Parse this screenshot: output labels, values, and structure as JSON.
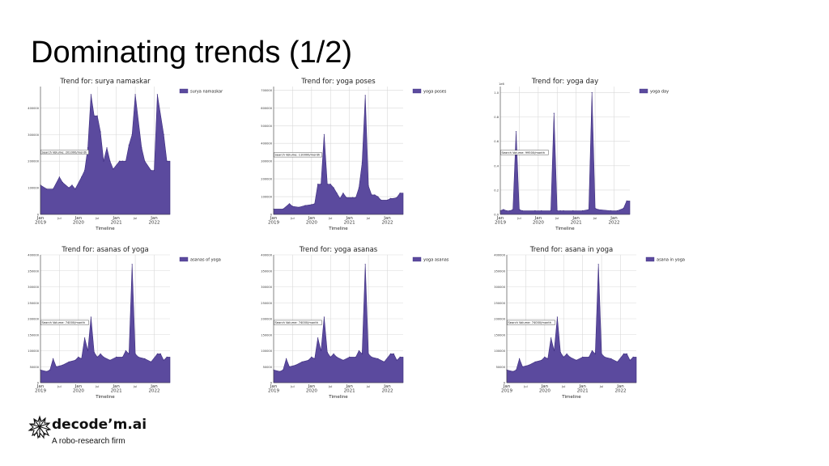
{
  "slide": {
    "title": "Dominating trends (1/2)"
  },
  "logo": {
    "name": "decode’m.ai",
    "tagline": "A robo-research firm"
  },
  "colors": {
    "fill": "#5b4a9e",
    "stroke": "#3f2f80",
    "grid": "#d9d9d9"
  },
  "chart_data": [
    {
      "type": "area",
      "title": "Trend for: surya namaskar",
      "legend": "surya namaskar",
      "xlabel": "Timeline",
      "x_ticks": [
        "Jan\n2019",
        "Jul",
        "Jan\n2020",
        "Jul",
        "Jan\n2021",
        "Jul",
        "Jan\n2022",
        "Jul"
      ],
      "ylim": [
        0,
        480000
      ],
      "y_ticks": [
        0,
        100000,
        200000,
        300000,
        400000
      ],
      "y_scale_label": "",
      "annotation": "Search Volume: 201000/month",
      "annotation_y": 230000,
      "x": [
        "2019-01",
        "2019-03",
        "2019-05",
        "2019-07",
        "2019-08",
        "2019-10",
        "2019-11",
        "2019-12",
        "2020-02",
        "2020-03",
        "2020-04",
        "2020-05",
        "2020-06",
        "2020-07",
        "2020-08",
        "2020-09",
        "2020-10",
        "2020-11",
        "2020-12",
        "2021-02",
        "2021-03",
        "2021-04",
        "2021-05",
        "2021-06",
        "2021-07",
        "2021-09",
        "2021-10",
        "2021-12",
        "2022-01",
        "2022-02",
        "2022-04",
        "2022-05"
      ],
      "values": [
        110000,
        95000,
        95000,
        140000,
        120000,
        100000,
        110000,
        95000,
        140000,
        165000,
        250000,
        450000,
        370000,
        370000,
        310000,
        200000,
        250000,
        200000,
        170000,
        200000,
        200000,
        200000,
        260000,
        300000,
        450000,
        250000,
        200000,
        165000,
        165000,
        450000,
        300000,
        200000
      ]
    },
    {
      "type": "area",
      "title": "Trend for: yoga poses",
      "legend": "yoga poses",
      "xlabel": "Timeline",
      "x_ticks": [
        "Jan\n2019",
        "Jul",
        "Jan\n2020",
        "Jul",
        "Jan\n2021",
        "Jul",
        "Jan\n2022",
        "Jul"
      ],
      "ylim": [
        0,
        720000
      ],
      "y_ticks": [
        0,
        100000,
        200000,
        300000,
        400000,
        500000,
        600000,
        700000
      ],
      "y_scale_label": "",
      "annotation": "Search Volume: 110000/month",
      "annotation_y": 330000,
      "x": [
        "2019-01",
        "2019-04",
        "2019-06",
        "2019-07",
        "2019-09",
        "2019-11",
        "2020-01",
        "2020-02",
        "2020-03",
        "2020-04",
        "2020-05",
        "2020-06",
        "2020-07",
        "2020-08",
        "2020-09",
        "2020-10",
        "2020-11",
        "2020-12",
        "2021-02",
        "2021-03",
        "2021-04",
        "2021-05",
        "2021-06",
        "2021-07",
        "2021-08",
        "2021-09",
        "2021-10",
        "2021-11",
        "2022-01",
        "2022-02",
        "2022-03",
        "2022-04",
        "2022-05"
      ],
      "values": [
        30000,
        30000,
        60000,
        45000,
        40000,
        50000,
        55000,
        60000,
        170000,
        170000,
        450000,
        170000,
        170000,
        150000,
        120000,
        90000,
        120000,
        95000,
        95000,
        95000,
        150000,
        290000,
        670000,
        160000,
        110000,
        110000,
        100000,
        80000,
        80000,
        90000,
        90000,
        95000,
        120000
      ]
    },
    {
      "type": "area",
      "title": "Trend for: yoga day",
      "legend": "yoga day",
      "xlabel": "Timeline",
      "x_ticks": [
        "Jan\n2019",
        "Jul",
        "Jan\n2020",
        "Jul",
        "Jan\n2021",
        "Jul",
        "Jan\n2022",
        "Jul"
      ],
      "ylim": [
        0,
        1.05
      ],
      "y_ticks": [
        0.0,
        0.2,
        0.4,
        0.6,
        0.8,
        1.0
      ],
      "y_scale_label": "1e6",
      "annotation": "Search Volume: 99500/month",
      "annotation_y": 0.5,
      "x": [
        "2019-01",
        "2019-02",
        "2019-03",
        "2019-04",
        "2019-05",
        "2019-06",
        "2019-07",
        "2019-08",
        "2019-12",
        "2020-02",
        "2020-05",
        "2020-06",
        "2020-07",
        "2020-08",
        "2020-09",
        "2020-12",
        "2021-03",
        "2021-05",
        "2021-06",
        "2021-07",
        "2021-08",
        "2021-12",
        "2022-02",
        "2022-04",
        "2022-05"
      ],
      "values": [
        0.03,
        0.04,
        0.03,
        0.03,
        0.04,
        0.68,
        0.04,
        0.03,
        0.03,
        0.03,
        0.03,
        0.83,
        0.03,
        0.03,
        0.03,
        0.03,
        0.03,
        0.04,
        1.0,
        0.05,
        0.04,
        0.03,
        0.03,
        0.05,
        0.11
      ]
    },
    {
      "type": "area",
      "title": "Trend for: asanas of yoga",
      "legend": "asanas of yoga",
      "xlabel": "Timeline",
      "x_ticks": [
        "Jan\n2019",
        "Jul",
        "Jan\n2020",
        "Jul",
        "Jan\n2021",
        "Jul",
        "Jan\n2022",
        "Jul"
      ],
      "ylim": [
        0,
        400000
      ],
      "y_ticks": [
        0,
        50000,
        100000,
        150000,
        200000,
        250000,
        300000,
        350000,
        400000
      ],
      "y_scale_label": "",
      "annotation": "Search Volume: 74000/month",
      "annotation_y": 185000,
      "x": [
        "2019-01",
        "2019-03",
        "2019-04",
        "2019-05",
        "2019-06",
        "2019-08",
        "2019-10",
        "2019-12",
        "2020-01",
        "2020-02",
        "2020-03",
        "2020-04",
        "2020-05",
        "2020-06",
        "2020-07",
        "2020-08",
        "2020-09",
        "2020-11",
        "2021-01",
        "2021-03",
        "2021-04",
        "2021-05",
        "2021-06",
        "2021-07",
        "2021-08",
        "2021-10",
        "2021-12",
        "2022-02",
        "2022-03",
        "2022-04",
        "2022-05"
      ],
      "values": [
        40000,
        35000,
        40000,
        75000,
        50000,
        55000,
        65000,
        70000,
        80000,
        75000,
        140000,
        100000,
        205000,
        95000,
        80000,
        90000,
        80000,
        70000,
        80000,
        80000,
        100000,
        90000,
        370000,
        90000,
        80000,
        75000,
        65000,
        90000,
        90000,
        70000,
        80000
      ]
    },
    {
      "type": "area",
      "title": "Trend for: yoga asanas",
      "legend": "yoga asanas",
      "xlabel": "Timeline",
      "x_ticks": [
        "Jan\n2019",
        "Jul",
        "Jan\n2020",
        "Jul",
        "Jan\n2021",
        "Jul",
        "Jan\n2022",
        "Jul"
      ],
      "ylim": [
        0,
        400000
      ],
      "y_ticks": [
        0,
        50000,
        100000,
        150000,
        200000,
        250000,
        300000,
        350000,
        400000
      ],
      "y_scale_label": "",
      "annotation": "Search Volume: 74000/month",
      "annotation_y": 185000,
      "x": [
        "2019-01",
        "2019-03",
        "2019-04",
        "2019-05",
        "2019-06",
        "2019-08",
        "2019-10",
        "2019-12",
        "2020-01",
        "2020-02",
        "2020-03",
        "2020-04",
        "2020-05",
        "2020-06",
        "2020-07",
        "2020-08",
        "2020-09",
        "2020-11",
        "2021-01",
        "2021-03",
        "2021-04",
        "2021-05",
        "2021-06",
        "2021-07",
        "2021-08",
        "2021-10",
        "2021-12",
        "2022-02",
        "2022-03",
        "2022-04",
        "2022-05"
      ],
      "values": [
        40000,
        35000,
        40000,
        75000,
        50000,
        55000,
        65000,
        70000,
        80000,
        75000,
        140000,
        100000,
        205000,
        95000,
        80000,
        90000,
        80000,
        70000,
        80000,
        80000,
        100000,
        90000,
        370000,
        90000,
        80000,
        75000,
        65000,
        90000,
        90000,
        70000,
        80000
      ]
    },
    {
      "type": "area",
      "title": "Trend for: asana in yoga",
      "legend": "asana in yoga",
      "xlabel": "Timeline",
      "x_ticks": [
        "Jan\n2019",
        "Jul",
        "Jan\n2020",
        "Jul",
        "Jan\n2021",
        "Jul",
        "Jan\n2022",
        "Jul"
      ],
      "ylim": [
        0,
        400000
      ],
      "y_ticks": [
        0,
        50000,
        100000,
        150000,
        200000,
        250000,
        300000,
        350000,
        400000
      ],
      "y_scale_label": "",
      "annotation": "Search Volume: 74000/month",
      "annotation_y": 185000,
      "x": [
        "2019-01",
        "2019-03",
        "2019-04",
        "2019-05",
        "2019-06",
        "2019-08",
        "2019-10",
        "2019-12",
        "2020-01",
        "2020-02",
        "2020-03",
        "2020-04",
        "2020-05",
        "2020-06",
        "2020-07",
        "2020-08",
        "2020-09",
        "2020-11",
        "2021-01",
        "2021-03",
        "2021-04",
        "2021-05",
        "2021-06",
        "2021-07",
        "2021-08",
        "2021-10",
        "2021-12",
        "2022-02",
        "2022-03",
        "2022-04",
        "2022-05"
      ],
      "values": [
        40000,
        35000,
        40000,
        75000,
        50000,
        55000,
        65000,
        70000,
        80000,
        75000,
        140000,
        100000,
        205000,
        95000,
        80000,
        90000,
        80000,
        70000,
        80000,
        80000,
        100000,
        90000,
        370000,
        90000,
        80000,
        75000,
        65000,
        90000,
        90000,
        70000,
        80000
      ]
    }
  ]
}
